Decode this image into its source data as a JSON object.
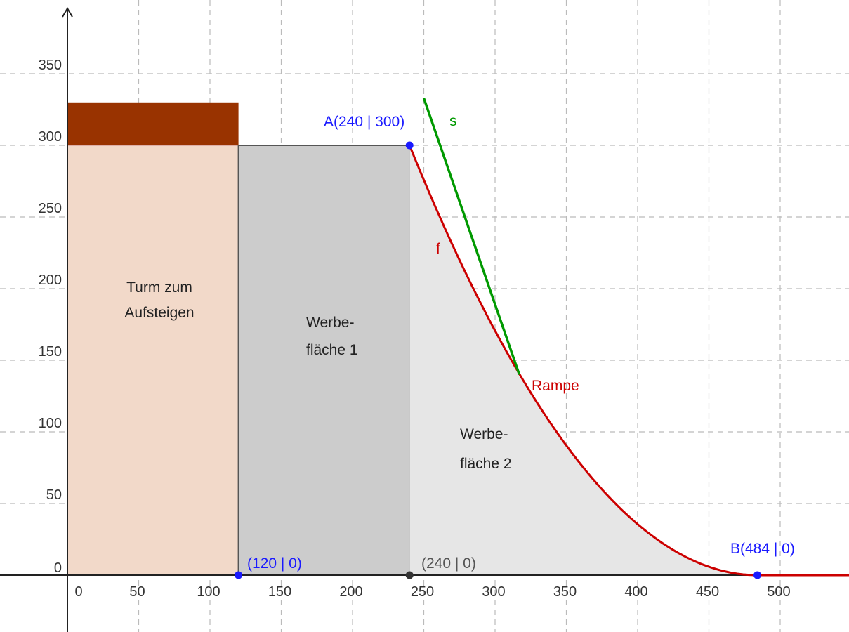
{
  "axes": {
    "x_ticks": [
      "0",
      "50",
      "100",
      "150",
      "200",
      "250",
      "300",
      "350",
      "400",
      "450",
      "500"
    ],
    "y_ticks": [
      "0",
      "50",
      "100",
      "150",
      "200",
      "250",
      "300",
      "350"
    ],
    "x_tick_values": [
      0,
      50,
      100,
      150,
      200,
      250,
      300,
      350,
      400,
      450,
      500
    ],
    "y_tick_values": [
      0,
      50,
      100,
      150,
      200,
      250,
      300,
      350
    ],
    "grid": "dashed"
  },
  "regions": {
    "tower": {
      "line1": "Turm zum",
      "line2": "Aufsteigen"
    },
    "ad1": {
      "line1": "Werbe-",
      "line2": "fläche 1"
    },
    "ad2": {
      "line1": "Werbe-",
      "line2": "fläche 2"
    }
  },
  "points": {
    "A": {
      "label": "A(240 | 300)",
      "x": 240,
      "y": 300
    },
    "B": {
      "label": "B(484 | 0)",
      "x": 484,
      "y": 0
    },
    "P120": {
      "label": "(120 | 0)",
      "x": 120,
      "y": 0
    },
    "P240": {
      "label": "(240 | 0)",
      "x": 240,
      "y": 0
    }
  },
  "curves": {
    "f": {
      "label": "f",
      "color": "#cc0000",
      "from": [
        240,
        300
      ],
      "to": [
        484,
        0
      ],
      "curve_label": "Rampe"
    },
    "s": {
      "label": "s",
      "color": "#009900",
      "from": [
        250,
        333
      ],
      "to": [
        317,
        140
      ]
    }
  },
  "colors": {
    "tower_fill": "#f2d9c9",
    "tower_top": "#993300",
    "ad1_fill": "#cccccc",
    "ad2_fill": "#e6e6e6",
    "point_blue": "#1a1aff",
    "point_dark": "#333333"
  }
}
